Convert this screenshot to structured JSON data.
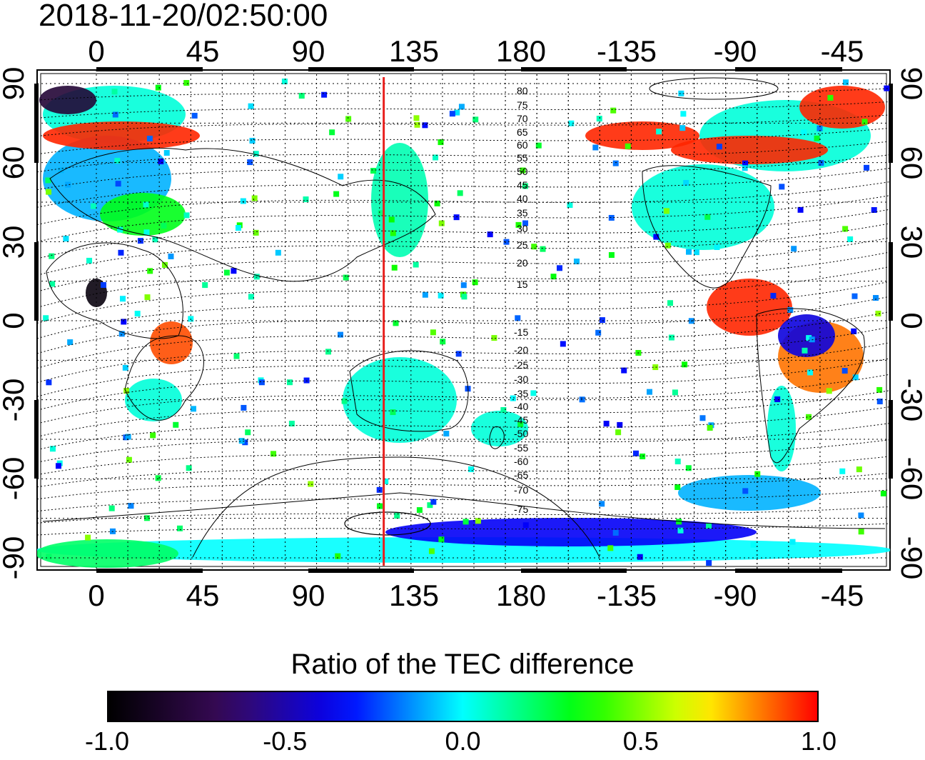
{
  "title": "2018-11-20/02:50:00",
  "top_lon_labels": [
    "0",
    "45",
    "90",
    "135",
    "180",
    "-135",
    "-90",
    "-45"
  ],
  "bottom_lon_labels": [
    "0",
    "45",
    "90",
    "135",
    "180",
    "-135",
    "-90",
    "-45"
  ],
  "left_lat_labels": [
    "90",
    "60",
    "30",
    "0",
    "-30",
    "-60",
    "-90"
  ],
  "right_lat_labels": [
    "90",
    "60",
    "30",
    "0",
    "-30",
    "-60",
    "-90"
  ],
  "contour_labels_north": [
    "80",
    "75",
    "70",
    "65",
    "60",
    "55",
    "50",
    "45",
    "40",
    "35",
    "30",
    "25",
    "20",
    "15"
  ],
  "contour_labels_south": [
    "-15",
    "-20",
    "-25",
    "-30",
    "-35",
    "-40",
    "-45",
    "-50",
    "-55",
    "-60",
    "-65",
    "-70",
    "-75"
  ],
  "marker_line_longitude": 137,
  "colorbar": {
    "title": "Ratio of the TEC difference",
    "ticks": [
      "-1.0",
      "-0.5",
      "0.0",
      "0.5",
      "1.0"
    ],
    "range": [
      -1.0,
      1.0
    ]
  },
  "colors": {
    "marker_line": "#e8201e",
    "scale": [
      "#000000",
      "#3a0a5a",
      "#0000ff",
      "#00ffff",
      "#00ff00",
      "#ffff00",
      "#ff0000"
    ]
  }
}
